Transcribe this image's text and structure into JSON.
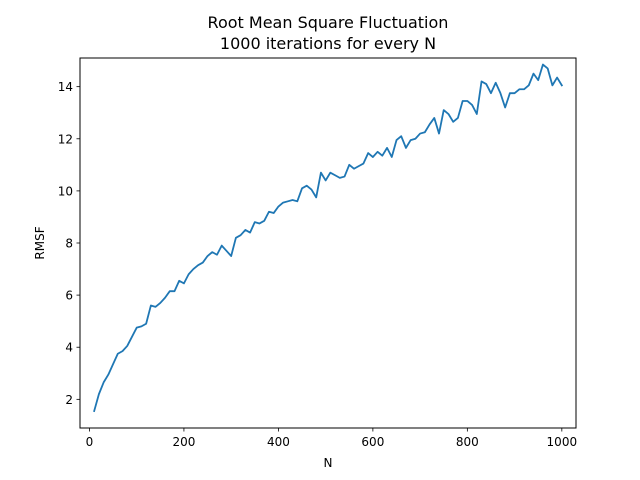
{
  "chart_data": {
    "type": "line",
    "title": "Root Mean Square Fluctuation",
    "subtitle": "1000 iterations for every N",
    "xlabel": "N",
    "ylabel": "RMSF",
    "xlim": [
      -20,
      1030
    ],
    "ylim": [
      0.9,
      15.1
    ],
    "xticks": [
      0,
      200,
      400,
      600,
      800,
      1000
    ],
    "yticks": [
      2,
      4,
      6,
      8,
      10,
      12,
      14
    ],
    "xtick_labels": [
      "0",
      "200",
      "400",
      "600",
      "800",
      "1000"
    ],
    "ytick_labels": [
      "2",
      "4",
      "6",
      "8",
      "10",
      "12",
      "14"
    ],
    "grid": false,
    "legend": "none",
    "line_color": "#1f77b4",
    "x": [
      10,
      20,
      30,
      40,
      50,
      60,
      70,
      80,
      90,
      100,
      110,
      120,
      130,
      140,
      150,
      160,
      170,
      180,
      190,
      200,
      210,
      220,
      230,
      240,
      250,
      260,
      270,
      280,
      290,
      300,
      310,
      320,
      330,
      340,
      350,
      360,
      370,
      380,
      390,
      400,
      410,
      420,
      430,
      440,
      450,
      460,
      470,
      480,
      490,
      500,
      510,
      520,
      530,
      540,
      550,
      560,
      570,
      580,
      590,
      600,
      610,
      620,
      630,
      640,
      650,
      660,
      670,
      680,
      690,
      700,
      710,
      720,
      730,
      740,
      750,
      760,
      770,
      780,
      790,
      800,
      810,
      820,
      830,
      840,
      850,
      860,
      870,
      880,
      890,
      900,
      910,
      920,
      930,
      940,
      950,
      960,
      970,
      980,
      990,
      1000
    ],
    "y": [
      1.55,
      2.2,
      2.65,
      2.95,
      3.35,
      3.75,
      3.85,
      4.05,
      4.4,
      4.75,
      4.8,
      4.9,
      5.6,
      5.55,
      5.7,
      5.9,
      6.15,
      6.15,
      6.55,
      6.45,
      6.8,
      7.0,
      7.15,
      7.25,
      7.5,
      7.65,
      7.55,
      7.9,
      7.7,
      7.5,
      8.2,
      8.3,
      8.5,
      8.4,
      8.8,
      8.75,
      8.85,
      9.2,
      9.15,
      9.4,
      9.55,
      9.6,
      9.65,
      9.6,
      10.1,
      10.2,
      10.05,
      9.75,
      10.7,
      10.4,
      10.7,
      10.6,
      10.5,
      10.55,
      11.0,
      10.85,
      10.95,
      11.05,
      11.45,
      11.3,
      11.5,
      11.35,
      11.65,
      11.3,
      11.95,
      12.1,
      11.65,
      11.95,
      12.0,
      12.2,
      12.25,
      12.55,
      12.8,
      12.2,
      13.1,
      12.95,
      12.65,
      12.8,
      13.45,
      13.45,
      13.3,
      12.95,
      14.2,
      14.1,
      13.75,
      14.15,
      13.75,
      13.2,
      13.75,
      13.75,
      13.9,
      13.9,
      14.05,
      14.5,
      14.25,
      14.85,
      14.7,
      14.05,
      14.35,
      14.05
    ]
  }
}
